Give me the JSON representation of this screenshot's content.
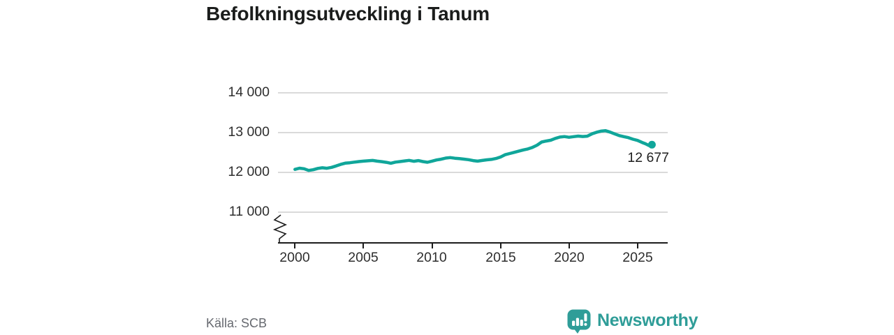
{
  "chart": {
    "title": "Befolkningsutveckling i Tanum"
  },
  "axes": {
    "yticks": [
      "14 000",
      "13 000",
      "12 000",
      "11 000"
    ],
    "xticks": [
      "2000",
      "2005",
      "2010",
      "2015",
      "2020",
      "2025"
    ]
  },
  "annotation": {
    "label": "12 677"
  },
  "footer": {
    "source": "Källa: SCB"
  },
  "branding": {
    "name": "Newsworthy",
    "icon": "speech-bubble-bar-chart",
    "color": "#2f9d98"
  },
  "colors": {
    "line": "#10a69a",
    "grid": "#dadada",
    "axis": "#1c1c1c",
    "text": "#2e2e2e",
    "muted_text": "#66696f",
    "background": "#ffffff"
  },
  "chart_data": {
    "type": "line",
    "title": "Befolkningsutveckling i Tanum",
    "xlabel": "",
    "ylabel": "",
    "x_tick_values": [
      2000,
      2005,
      2010,
      2015,
      2020,
      2025
    ],
    "y_tick_values": [
      11000,
      12000,
      13000,
      14000
    ],
    "ylim": [
      11000,
      14000
    ],
    "xlim": [
      1999,
      2027
    ],
    "y_axis_break": true,
    "grid": "horizontal-only",
    "legend": "none",
    "last_point": {
      "label": "12 677",
      "value": 12677
    },
    "series": [
      {
        "name": "Befolkning i Tanum",
        "color": "#10a69a",
        "points": [
          [
            2000.0,
            12055
          ],
          [
            2000.33,
            12085
          ],
          [
            2000.67,
            12070
          ],
          [
            2001.0,
            12028
          ],
          [
            2001.33,
            12045
          ],
          [
            2001.67,
            12080
          ],
          [
            2002.0,
            12095
          ],
          [
            2002.33,
            12082
          ],
          [
            2002.67,
            12105
          ],
          [
            2003.0,
            12140
          ],
          [
            2003.33,
            12180
          ],
          [
            2003.67,
            12212
          ],
          [
            2004.0,
            12222
          ],
          [
            2004.33,
            12238
          ],
          [
            2004.67,
            12252
          ],
          [
            2005.0,
            12262
          ],
          [
            2005.33,
            12272
          ],
          [
            2005.67,
            12280
          ],
          [
            2006.0,
            12262
          ],
          [
            2006.33,
            12250
          ],
          [
            2006.67,
            12232
          ],
          [
            2007.0,
            12210
          ],
          [
            2007.33,
            12238
          ],
          [
            2007.67,
            12252
          ],
          [
            2008.0,
            12268
          ],
          [
            2008.33,
            12282
          ],
          [
            2008.67,
            12258
          ],
          [
            2009.0,
            12276
          ],
          [
            2009.33,
            12252
          ],
          [
            2009.67,
            12234
          ],
          [
            2010.0,
            12262
          ],
          [
            2010.33,
            12292
          ],
          [
            2010.67,
            12312
          ],
          [
            2011.0,
            12340
          ],
          [
            2011.33,
            12352
          ],
          [
            2011.67,
            12336
          ],
          [
            2012.0,
            12326
          ],
          [
            2012.33,
            12314
          ],
          [
            2012.67,
            12300
          ],
          [
            2013.0,
            12276
          ],
          [
            2013.33,
            12262
          ],
          [
            2013.67,
            12280
          ],
          [
            2014.0,
            12295
          ],
          [
            2014.33,
            12306
          ],
          [
            2014.67,
            12330
          ],
          [
            2015.0,
            12366
          ],
          [
            2015.33,
            12425
          ],
          [
            2015.67,
            12455
          ],
          [
            2016.0,
            12484
          ],
          [
            2016.33,
            12514
          ],
          [
            2016.67,
            12545
          ],
          [
            2017.0,
            12570
          ],
          [
            2017.33,
            12610
          ],
          [
            2017.67,
            12665
          ],
          [
            2018.0,
            12745
          ],
          [
            2018.33,
            12770
          ],
          [
            2018.67,
            12790
          ],
          [
            2019.0,
            12836
          ],
          [
            2019.33,
            12870
          ],
          [
            2019.67,
            12882
          ],
          [
            2020.0,
            12864
          ],
          [
            2020.33,
            12880
          ],
          [
            2020.67,
            12895
          ],
          [
            2021.0,
            12884
          ],
          [
            2021.33,
            12892
          ],
          [
            2021.67,
            12950
          ],
          [
            2022.0,
            12990
          ],
          [
            2022.33,
            13020
          ],
          [
            2022.67,
            13030
          ],
          [
            2023.0,
            12995
          ],
          [
            2023.33,
            12950
          ],
          [
            2023.67,
            12906
          ],
          [
            2024.0,
            12880
          ],
          [
            2024.33,
            12856
          ],
          [
            2024.67,
            12815
          ],
          [
            2025.0,
            12785
          ],
          [
            2025.33,
            12735
          ],
          [
            2025.58,
            12700
          ],
          [
            2025.83,
            12656
          ],
          [
            2026.05,
            12677
          ]
        ]
      }
    ]
  }
}
